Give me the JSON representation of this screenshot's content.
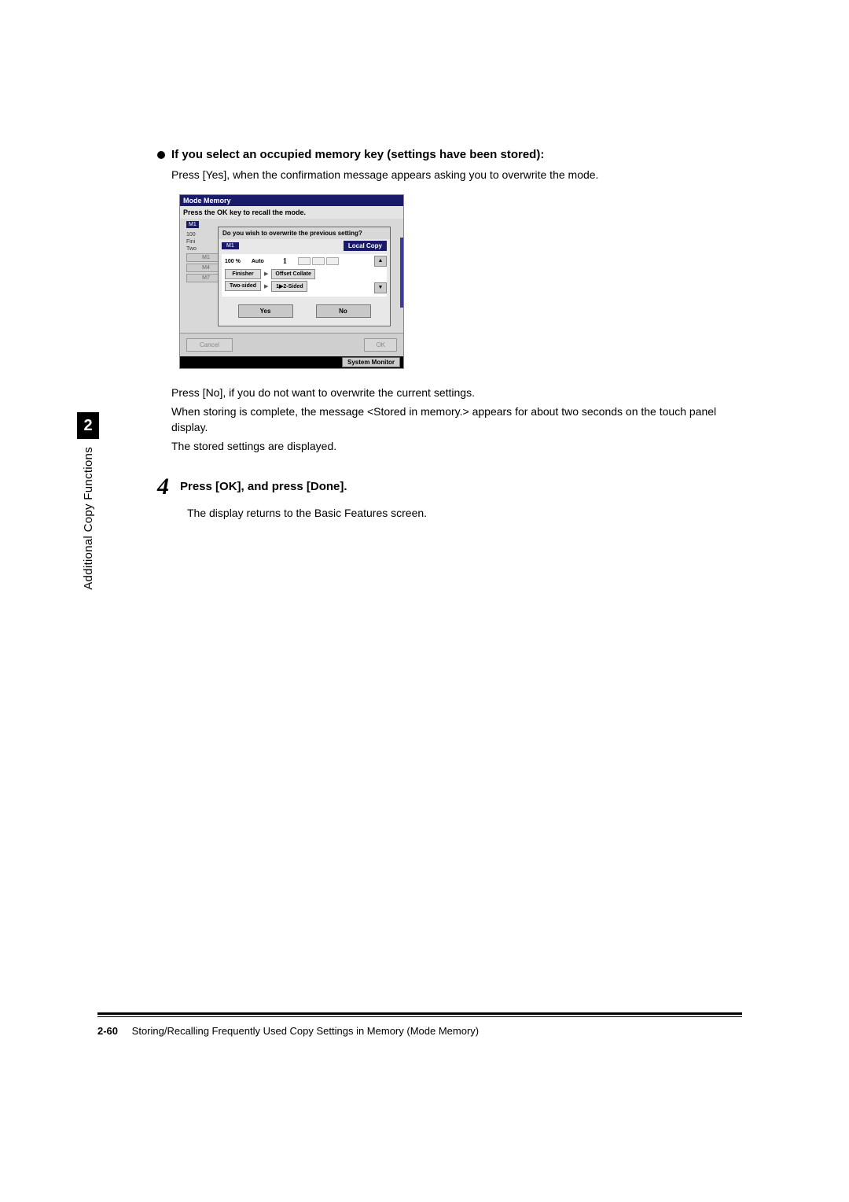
{
  "heading_occupied": "If you select an occupied memory key (settings have been stored):",
  "para_press_yes": "Press [Yes], when the confirmation message appears asking you to overwrite the mode.",
  "screenshot": {
    "title": "Mode Memory",
    "subtitle": "Press the OK key to recall the mode.",
    "bg": {
      "m1": "M1",
      "ten": "100",
      "fini": "Fini",
      "two": "Two",
      "local_copy_peek": "Local Copy",
      "m1_btn": "M1",
      "m4_btn": "M4",
      "m7_btn": "M7"
    },
    "overlay": {
      "question": "Do you wish to overwrite the previous setting?",
      "chip": "M1",
      "label": "Local Copy",
      "zoom": "100 %",
      "paper": "Auto",
      "count": "1",
      "finisher": "Finisher",
      "offset": "Offset Collate",
      "twosided": "Two-sided",
      "twosided_val": "1▶2-Sided",
      "yes": "Yes",
      "no": "No",
      "up": "▲",
      "down": "▼"
    },
    "footer": {
      "cancel": "Cancel",
      "ok": "OK"
    },
    "sys_monitor": "System Monitor"
  },
  "para_press_no": "Press [No], if you do not want to overwrite the current settings.",
  "para_storing": "When storing is complete, the message <Stored in memory.> appears for about two seconds on the touch panel display.",
  "para_stored": "The stored settings are displayed.",
  "step4": {
    "num": "4",
    "title": "Press [OK], and press [Done].",
    "body": "The display returns to the Basic Features screen."
  },
  "side": {
    "chapter": "2",
    "label": "Additional Copy Functions"
  },
  "footer": {
    "page": "2-60",
    "title": "Storing/Recalling Frequently Used Copy Settings in Memory (Mode Memory)"
  },
  "colors": {
    "navy": "#1a1a6a"
  }
}
